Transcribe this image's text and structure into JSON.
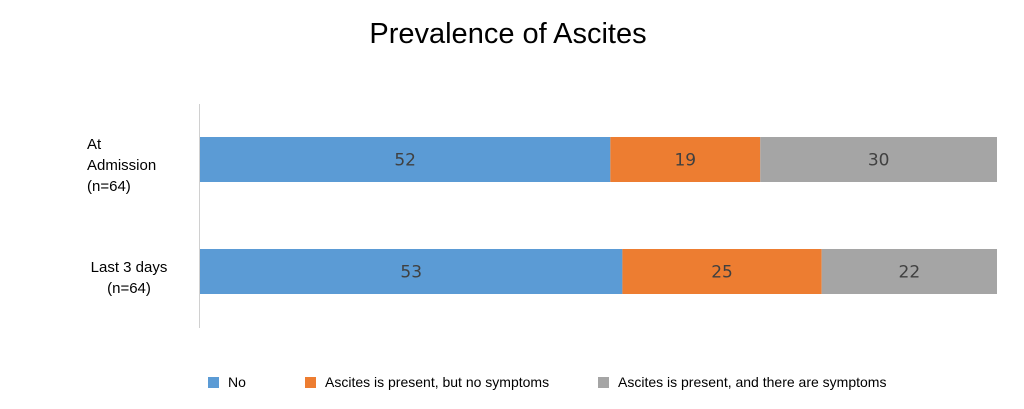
{
  "chart_data": {
    "type": "bar",
    "orientation": "horizontal",
    "stacked": true,
    "title": "Prevalence of Ascites",
    "categories": [
      [
        "At",
        "Admission",
        "(n=64)"
      ],
      [
        "Last 3 days",
        "(n=64)"
      ]
    ],
    "series": [
      {
        "name": "No",
        "values": [
          52,
          53
        ],
        "color": "#5B9BD5"
      },
      {
        "name": "Ascites is present, but no symptoms",
        "values": [
          19,
          25
        ],
        "color": "#ED7D31"
      },
      {
        "name": "Ascites is present, and there are symptoms",
        "values": [
          30,
          22
        ],
        "color": "#A5A5A5"
      }
    ],
    "legend": "bottom",
    "grid": false
  }
}
